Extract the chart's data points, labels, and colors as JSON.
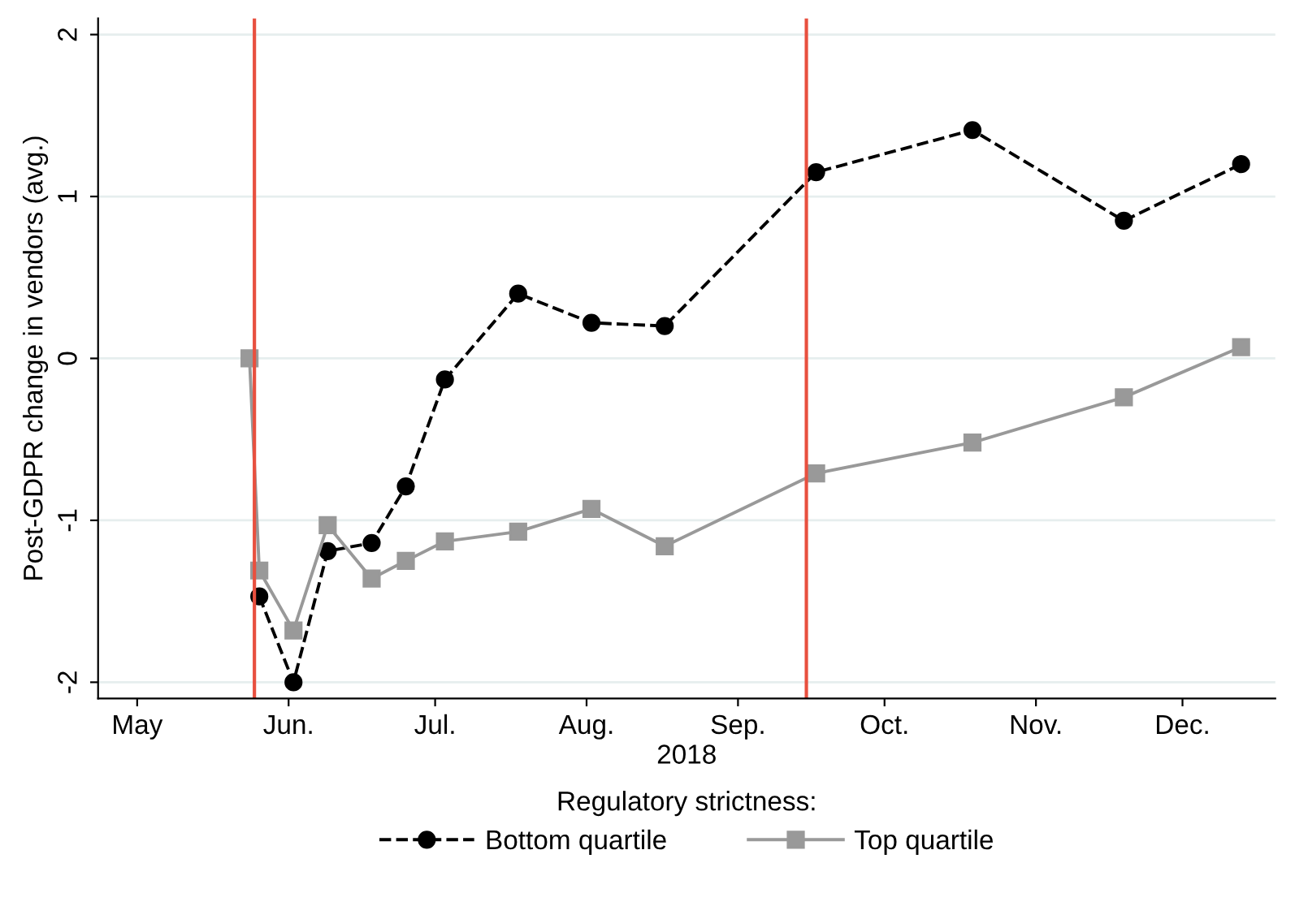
{
  "chart_data": {
    "type": "line",
    "xlabel": "2018",
    "ylabel": "Post-GDPR change in vendors (avg.)",
    "legend_title": "Regulatory strictness:",
    "legend": "bottom",
    "grid": "y",
    "xlim": [
      "2018-04-23",
      "2018-12-20"
    ],
    "xticks": [
      {
        "value": "2018-05-01",
        "label": "May"
      },
      {
        "value": "2018-06-01",
        "label": "Jun."
      },
      {
        "value": "2018-07-01",
        "label": "Jul."
      },
      {
        "value": "2018-08-01",
        "label": "Aug."
      },
      {
        "value": "2018-09-01",
        "label": "Sep."
      },
      {
        "value": "2018-10-01",
        "label": "Oct."
      },
      {
        "value": "2018-11-01",
        "label": "Nov."
      },
      {
        "value": "2018-12-01",
        "label": "Dec."
      }
    ],
    "ylim": [
      -2.1,
      2.1
    ],
    "yticks": [
      -2,
      -1,
      0,
      1,
      2
    ],
    "ref_lines": [
      {
        "axis": "x",
        "value": "2018-05-25",
        "color": "#e8503f"
      },
      {
        "axis": "x",
        "value": "2018-09-15",
        "color": "#e8503f"
      }
    ],
    "series": [
      {
        "name": "Bottom quartile",
        "color": "#000000",
        "marker": "circle",
        "line_style": "dashed",
        "x": [
          "2018-05-26",
          "2018-06-02",
          "2018-06-09",
          "2018-06-18",
          "2018-06-25",
          "2018-07-03",
          "2018-07-18",
          "2018-08-02",
          "2018-08-17",
          "2018-09-17",
          "2018-10-19",
          "2018-11-19",
          "2018-12-13"
        ],
        "values": [
          -1.47,
          -2.0,
          -1.19,
          -1.14,
          -0.79,
          -0.13,
          0.4,
          0.22,
          0.2,
          1.15,
          1.41,
          0.85,
          1.2
        ]
      },
      {
        "name": "Top quartile",
        "color": "#999999",
        "marker": "square",
        "line_style": "solid",
        "x": [
          "2018-05-24",
          "2018-05-26",
          "2018-06-02",
          "2018-06-09",
          "2018-06-18",
          "2018-06-25",
          "2018-07-03",
          "2018-07-18",
          "2018-08-02",
          "2018-08-17",
          "2018-09-17",
          "2018-10-19",
          "2018-11-19",
          "2018-12-13"
        ],
        "values": [
          0,
          -1.31,
          -1.68,
          -1.03,
          -1.36,
          -1.25,
          -1.13,
          -1.07,
          -0.93,
          -1.16,
          -0.71,
          -0.52,
          -0.24,
          0.07
        ]
      }
    ]
  }
}
